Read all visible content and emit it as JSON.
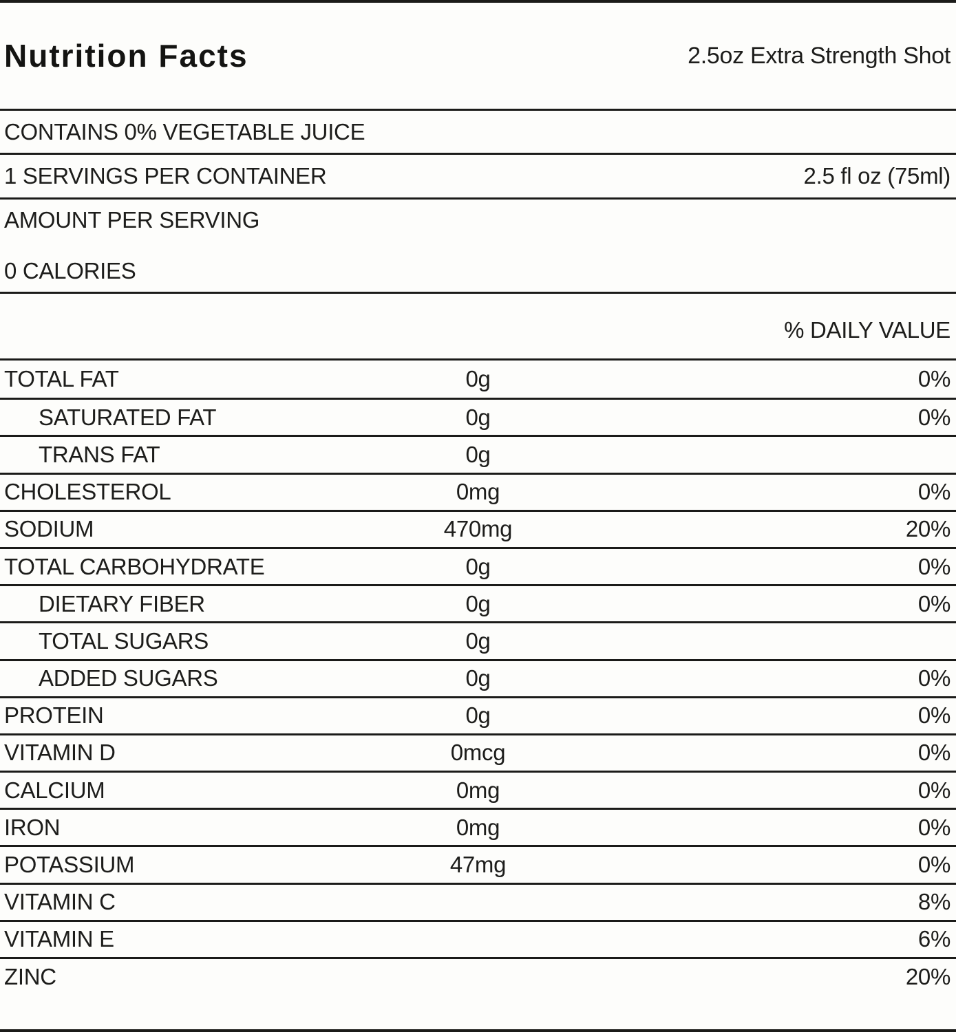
{
  "header": {
    "title": "Nutrition Facts",
    "product": "2.5oz Extra Strength Shot"
  },
  "contains_statement": "CONTAINS 0% VEGETABLE JUICE",
  "servings": {
    "per_container": "1 SERVINGS PER CONTAINER",
    "serving_size": "2.5 fl oz (75ml)"
  },
  "amount_per_serving_label": "AMOUNT PER SERVING",
  "calories": "0 CALORIES",
  "daily_value_header": "% DAILY VALUE",
  "rows": [
    {
      "label": "TOTAL FAT",
      "amount": "0g",
      "dv": "0%",
      "indent": false
    },
    {
      "label": "SATURATED FAT",
      "amount": "0g",
      "dv": "0%",
      "indent": true
    },
    {
      "label": "TRANS FAT",
      "amount": "0g",
      "dv": "",
      "indent": true
    },
    {
      "label": "CHOLESTEROL",
      "amount": "0mg",
      "dv": "0%",
      "indent": false
    },
    {
      "label": "SODIUM",
      "amount": "470mg",
      "dv": "20%",
      "indent": false
    },
    {
      "label": "TOTAL CARBOHYDRATE",
      "amount": "0g",
      "dv": "0%",
      "indent": false
    },
    {
      "label": "DIETARY FIBER",
      "amount": "0g",
      "dv": "0%",
      "indent": true
    },
    {
      "label": "TOTAL SUGARS",
      "amount": "0g",
      "dv": "",
      "indent": true
    },
    {
      "label": "ADDED SUGARS",
      "amount": "0g",
      "dv": "0%",
      "indent": true
    },
    {
      "label": "PROTEIN",
      "amount": "0g",
      "dv": "0%",
      "indent": false
    },
    {
      "label": "VITAMIN D",
      "amount": "0mcg",
      "dv": "0%",
      "indent": false
    },
    {
      "label": "CALCIUM",
      "amount": "0mg",
      "dv": "0%",
      "indent": false
    },
    {
      "label": "IRON",
      "amount": "0mg",
      "dv": "0%",
      "indent": false
    },
    {
      "label": "POTASSIUM",
      "amount": "47mg",
      "dv": "0%",
      "indent": false
    },
    {
      "label": "VITAMIN C",
      "amount": "",
      "dv": "8%",
      "indent": false
    },
    {
      "label": "VITAMIN E",
      "amount": "",
      "dv": "6%",
      "indent": false
    },
    {
      "label": "ZINC",
      "amount": "",
      "dv": "20%",
      "indent": false
    }
  ],
  "colors": {
    "text": "#1d1d1b",
    "line": "#1b1b19",
    "background": "#fdfdfb"
  }
}
